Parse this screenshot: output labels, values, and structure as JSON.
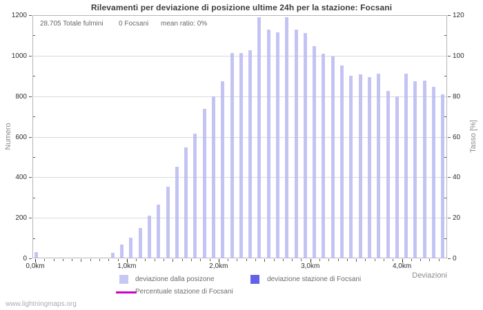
{
  "title": "Rilevamenti per deviazione di posizione ultime 24h per la stazione: Focsani",
  "stats": {
    "total_fulmini": "28.705 Totale fulmini",
    "station_count": "0 Focsani",
    "mean_ratio": "mean ratio: 0%"
  },
  "axes": {
    "left_label": "Numero",
    "right_label": "Tasso [%]",
    "x_label": "Deviazioni",
    "left_ticks": [
      0,
      200,
      400,
      600,
      800,
      1000,
      1200
    ],
    "right_ticks": [
      0,
      20,
      40,
      60,
      80,
      100,
      120
    ],
    "x_tick_labels": [
      "0,0km",
      "1,0km",
      "2,0km",
      "3,0km",
      "4,0km"
    ]
  },
  "legend": {
    "deviation_position": "deviazione dalla posizone",
    "deviation_station": "deviazione stazione di Focsani",
    "percent_station": "Percentuale stazione di Focsani"
  },
  "watermark": "www.lightningmaps.org",
  "colors": {
    "bar_position": "#c7c7f3",
    "bar_station": "#6262e8",
    "percent_line": "#cc00cc",
    "grid": "#d9d9d9",
    "border": "#b5b5b5"
  },
  "chart_data": {
    "type": "bar",
    "title": "Rilevamenti per deviazione di posizione ultime 24h per la stazione: Focsani",
    "xlabel": "Deviazioni",
    "ylabel_left": "Numero",
    "ylabel_right": "Tasso [%]",
    "ylim_left": [
      0,
      1200
    ],
    "ylim_right": [
      0,
      120
    ],
    "bin_size_km": 0.1,
    "x_km": [
      0.0,
      0.1,
      0.2,
      0.3,
      0.4,
      0.5,
      0.6,
      0.7,
      0.8,
      0.9,
      1.0,
      1.1,
      1.2,
      1.3,
      1.4,
      1.5,
      1.6,
      1.7,
      1.8,
      1.9,
      2.0,
      2.1,
      2.2,
      2.3,
      2.4,
      2.5,
      2.6,
      2.7,
      2.8,
      2.9,
      3.0,
      3.1,
      3.2,
      3.3,
      3.4,
      3.5,
      3.6,
      3.7,
      3.8,
      3.9,
      4.0,
      4.1,
      4.2,
      4.3,
      4.4
    ],
    "series": [
      {
        "name": "deviazione dalla posizone",
        "values": [
          30,
          0,
          0,
          0,
          0,
          0,
          0,
          0,
          28,
          68,
          102,
          150,
          212,
          266,
          354,
          453,
          546,
          616,
          739,
          800,
          872,
          1014,
          1012,
          1025,
          1190,
          1130,
          1114,
          1191,
          1130,
          1110,
          1048,
          1008,
          997,
          952,
          901,
          907,
          895,
          912,
          827,
          799,
          912,
          873,
          878,
          846,
          810
        ]
      },
      {
        "name": "deviazione stazione di Focsani",
        "values": [
          0,
          0,
          0,
          0,
          0,
          0,
          0,
          0,
          0,
          0,
          0,
          0,
          0,
          0,
          0,
          0,
          0,
          0,
          0,
          0,
          0,
          0,
          0,
          0,
          0,
          0,
          0,
          0,
          0,
          0,
          0,
          0,
          0,
          0,
          0,
          0,
          0,
          0,
          0,
          0,
          0,
          0,
          0,
          0,
          0
        ]
      },
      {
        "name": "Percentuale stazione di Focsani",
        "values": [
          0,
          0,
          0,
          0,
          0,
          0,
          0,
          0,
          0,
          0,
          0,
          0,
          0,
          0,
          0,
          0,
          0,
          0,
          0,
          0,
          0,
          0,
          0,
          0,
          0,
          0,
          0,
          0,
          0,
          0,
          0,
          0,
          0,
          0,
          0,
          0,
          0,
          0,
          0,
          0,
          0,
          0,
          0,
          0,
          0
        ]
      }
    ],
    "legend_position": "bottom",
    "grid": "horizontal"
  }
}
